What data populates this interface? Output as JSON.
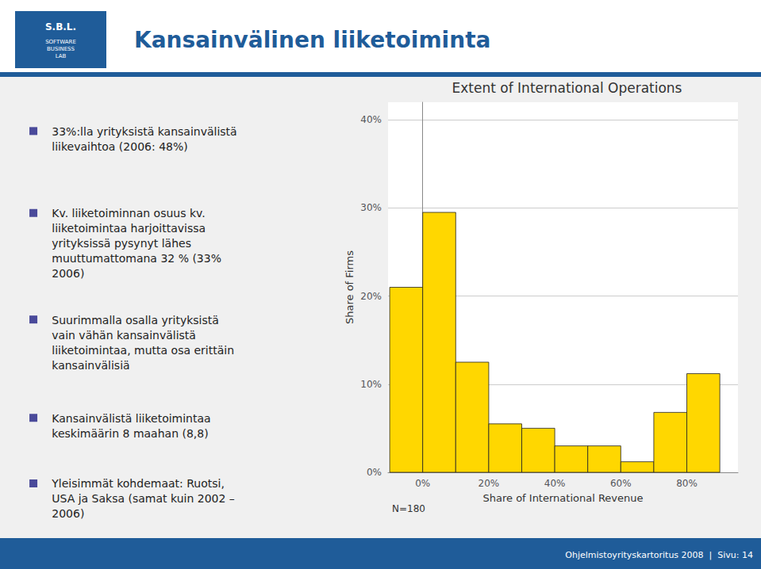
{
  "chart_data": {
    "type": "histogram",
    "title": "Extent of International Operations",
    "xlabel": "Share of International Revenue",
    "ylabel": "Share of Firms",
    "bins": [
      -0.1,
      0.0,
      0.1,
      0.2,
      0.3,
      0.4,
      0.5,
      0.6,
      0.7,
      0.8,
      0.9
    ],
    "values": [
      0.21,
      0.295,
      0.125,
      0.055,
      0.05,
      0.03,
      0.03,
      0.012,
      0.068,
      0.112
    ],
    "color": "#FFD700",
    "xlim": [
      -0.105,
      0.955
    ],
    "xticks": [
      {
        "value": 0.0,
        "label": "0%"
      },
      {
        "value": 0.2,
        "label": "20%"
      },
      {
        "value": 0.4,
        "label": "40%"
      },
      {
        "value": 0.6,
        "label": "60%"
      },
      {
        "value": 0.8,
        "label": "80%"
      }
    ],
    "ylim": [
      0,
      0.42
    ],
    "yticks": [
      {
        "value": 0.0,
        "label": "0%"
      },
      {
        "value": 0.1,
        "label": "10%"
      },
      {
        "value": 0.2,
        "label": "20%"
      },
      {
        "value": 0.3,
        "label": "30%"
      },
      {
        "value": 0.4,
        "label": "40%"
      }
    ],
    "grid": true,
    "annotations": [
      "Kansainvälinen liiketoiminta",
      "S.B.L.",
      "SOFTWARE\nBUSINESS\nLAB",
      "33%:lla yrityksistä kansainvälistä\nliikevaihtoa (2006: 48%)",
      "Kv. liiketoiminnan osuus kv.\nliiketoimintaa harjoittavissa\nyrityksissä pysynyt lähes\nmuuttumattomana 32 % (33%\n2006)",
      "Suurimmalla osalla yrityksistä\nvain vähän kansainvälistä\nliiketoimintaa, mutta osa erittäin\nkansainvälisiä",
      "Kansainvälistä liiketoimintaa\nkeskimäärin 8 maahan (8,8)",
      "Yleisimmät kohdemaat: Ruotsi,\nUSA ja Saksa (samat kuin 2002 –\n2006)",
      "Ohjelmistoyrityskartoritus 2008  |  Sivu: 14",
      "N=180"
    ]
  }
}
